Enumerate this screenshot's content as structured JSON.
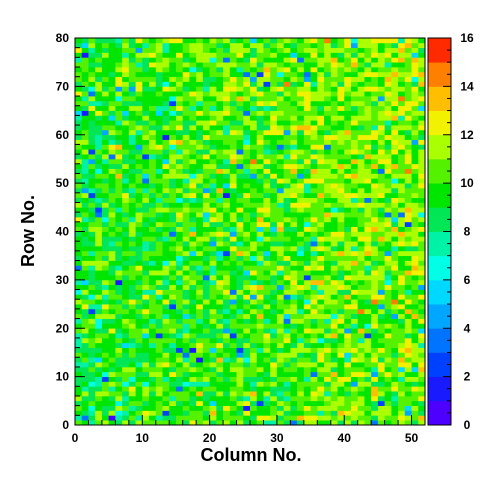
{
  "chart_data": {
    "type": "heatmap",
    "title": "",
    "xlabel": "Column No.",
    "ylabel": "Row No.",
    "xlim": [
      0,
      52
    ],
    "ylim": [
      0,
      80
    ],
    "x_ticks": [
      "0",
      "10",
      "20",
      "30",
      "40",
      "50"
    ],
    "y_ticks": [
      "0",
      "10",
      "20",
      "30",
      "40",
      "50",
      "60",
      "70",
      "80"
    ],
    "colorbar": {
      "min": 0,
      "max": 16,
      "ticks": [
        "0",
        "2",
        "4",
        "6",
        "8",
        "10",
        "12",
        "14",
        "16"
      ]
    },
    "grid": false,
    "grid_size": {
      "columns": 52,
      "rows": 80
    },
    "value_distribution": "cell values range 0-16, mostly 8-12; higher values (yellow/orange) concentrated toward upper-right, lower values (cyan/blue) scattered toward lower-left"
  }
}
